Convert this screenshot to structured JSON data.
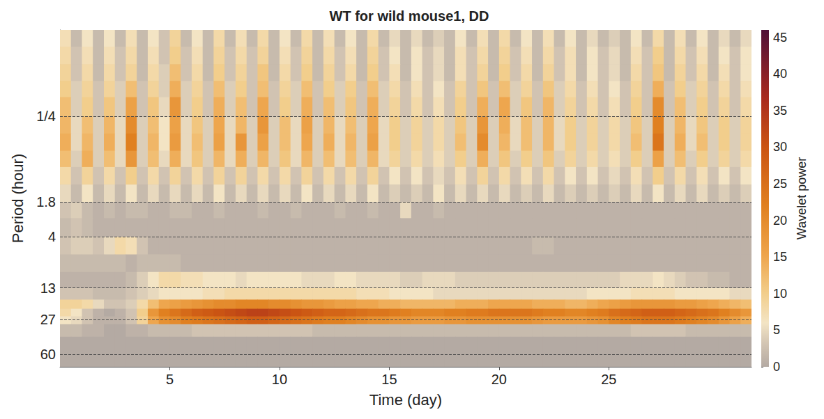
{
  "chart_data": {
    "type": "heatmap",
    "title": "WT for wild mouse1, DD",
    "x_label": "Time (day)",
    "y_label": "Period (hour)",
    "log": "y",
    "grid": true,
    "xlim": [
      0,
      31.5
    ],
    "xticks": [
      5,
      10,
      15,
      20,
      25
    ],
    "ylim": [
      0.034,
      80
    ],
    "yticks": [
      {
        "value": 0.25,
        "label": "1/4"
      },
      1.8,
      4,
      13,
      27,
      60
    ],
    "x_edges": [
      0,
      0.5,
      1,
      1.5,
      2,
      2.5,
      3,
      3.5,
      4,
      4.5,
      5,
      5.5,
      6,
      6.5,
      7,
      7.5,
      8,
      8.5,
      9,
      9.5,
      10,
      10.5,
      11,
      11.5,
      12,
      12.5,
      13,
      13.5,
      14,
      14.5,
      15,
      15.5,
      16,
      16.5,
      17,
      17.5,
      18,
      18.5,
      19,
      19.5,
      20,
      20.5,
      21,
      21.5,
      22,
      22.5,
      23,
      23.5,
      24,
      24.5,
      25,
      25.5,
      26,
      26.5,
      27,
      27.5,
      28,
      28.5,
      29,
      29.5,
      30,
      30.5,
      31,
      31.5
    ],
    "y_edges": [
      0.034,
      0.05,
      0.075,
      0.11,
      0.16,
      0.25,
      0.37,
      0.55,
      0.8,
      1.2,
      1.8,
      2.6,
      4,
      6,
      9,
      13,
      17,
      21,
      25,
      30,
      40,
      55,
      80
    ],
    "power": [
      [
        7,
        2,
        6,
        2,
        6,
        2,
        7,
        2,
        6,
        3,
        9,
        2,
        6,
        2,
        8,
        2,
        7,
        2,
        8,
        2,
        6,
        2,
        8,
        2,
        7,
        2,
        6,
        2,
        8,
        2,
        5,
        2,
        5,
        2,
        4,
        2,
        6,
        2,
        7,
        2,
        8,
        2,
        6,
        2,
        7,
        2,
        6,
        2,
        5,
        2,
        4,
        2,
        6,
        2,
        8,
        2,
        7,
        2,
        6,
        2,
        5,
        2,
        5
      ],
      [
        8,
        3,
        7,
        2,
        7,
        3,
        8,
        2,
        7,
        3,
        10,
        3,
        7,
        2,
        9,
        3,
        8,
        3,
        9,
        2,
        7,
        3,
        9,
        2,
        8,
        3,
        7,
        2,
        9,
        3,
        6,
        2,
        6,
        3,
        5,
        2,
        7,
        3,
        8,
        2,
        9,
        3,
        7,
        2,
        8,
        3,
        7,
        2,
        6,
        3,
        5,
        2,
        7,
        3,
        10,
        2,
        8,
        3,
        7,
        2,
        6,
        3,
        6
      ],
      [
        9,
        3,
        8,
        2,
        8,
        3,
        9,
        2,
        8,
        4,
        12,
        3,
        8,
        2,
        10,
        3,
        9,
        3,
        11,
        2,
        8,
        3,
        10,
        2,
        9,
        3,
        8,
        2,
        10,
        3,
        7,
        2,
        6,
        3,
        5,
        2,
        7,
        3,
        9,
        2,
        10,
        3,
        8,
        2,
        9,
        3,
        7,
        2,
        6,
        3,
        5,
        2,
        8,
        3,
        11,
        2,
        9,
        3,
        8,
        2,
        7,
        3,
        6
      ],
      [
        10,
        4,
        9,
        3,
        9,
        4,
        12,
        3,
        9,
        4,
        14,
        4,
        9,
        3,
        12,
        4,
        10,
        3,
        12,
        3,
        9,
        4,
        12,
        3,
        10,
        4,
        10,
        3,
        12,
        4,
        8,
        3,
        7,
        3,
        6,
        3,
        9,
        3,
        11,
        3,
        12,
        4,
        9,
        3,
        11,
        4,
        8,
        3,
        7,
        3,
        6,
        3,
        9,
        3,
        14,
        3,
        10,
        4,
        9,
        3,
        8,
        3,
        7
      ],
      [
        12,
        4,
        10,
        3,
        11,
        4,
        16,
        3,
        11,
        5,
        18,
        4,
        10,
        3,
        14,
        4,
        12,
        3,
        15,
        3,
        10,
        4,
        14,
        3,
        12,
        4,
        11,
        3,
        14,
        4,
        9,
        3,
        8,
        3,
        7,
        3,
        10,
        3,
        14,
        3,
        15,
        4,
        11,
        3,
        13,
        4,
        9,
        3,
        8,
        3,
        7,
        3,
        10,
        3,
        20,
        3,
        12,
        4,
        10,
        3,
        9,
        3,
        8
      ],
      [
        13,
        5,
        12,
        4,
        13,
        5,
        20,
        4,
        12,
        6,
        16,
        5,
        11,
        4,
        15,
        5,
        13,
        4,
        18,
        4,
        12,
        5,
        16,
        4,
        13,
        5,
        12,
        4,
        15,
        5,
        10,
        4,
        9,
        4,
        8,
        4,
        11,
        4,
        18,
        4,
        14,
        5,
        12,
        4,
        13,
        5,
        10,
        4,
        9,
        4,
        8,
        4,
        11,
        4,
        22,
        4,
        13,
        5,
        11,
        4,
        10,
        4,
        9
      ],
      [
        14,
        5,
        13,
        4,
        14,
        5,
        22,
        4,
        13,
        6,
        17,
        5,
        12,
        4,
        16,
        5,
        18,
        4,
        16,
        4,
        12,
        5,
        15,
        4,
        14,
        5,
        13,
        4,
        16,
        5,
        10,
        4,
        9,
        4,
        8,
        4,
        12,
        4,
        20,
        4,
        13,
        5,
        12,
        4,
        13,
        5,
        10,
        4,
        9,
        4,
        8,
        4,
        12,
        4,
        24,
        4,
        14,
        5,
        12,
        4,
        10,
        4,
        9
      ],
      [
        12,
        4,
        14,
        4,
        12,
        5,
        18,
        4,
        12,
        5,
        14,
        5,
        11,
        4,
        13,
        5,
        14,
        4,
        13,
        4,
        11,
        5,
        13,
        4,
        12,
        5,
        12,
        4,
        13,
        5,
        9,
        4,
        8,
        4,
        7,
        4,
        10,
        4,
        14,
        4,
        11,
        4,
        10,
        4,
        11,
        4,
        9,
        4,
        8,
        4,
        7,
        4,
        10,
        4,
        16,
        4,
        12,
        4,
        10,
        4,
        9,
        4,
        8
      ],
      [
        8,
        3,
        9,
        3,
        8,
        3,
        10,
        3,
        8,
        3,
        9,
        3,
        8,
        3,
        9,
        3,
        9,
        3,
        8,
        3,
        8,
        3,
        9,
        3,
        8,
        3,
        8,
        3,
        9,
        3,
        6,
        3,
        6,
        3,
        5,
        3,
        7,
        3,
        9,
        3,
        8,
        3,
        7,
        3,
        8,
        3,
        6,
        3,
        6,
        3,
        5,
        3,
        7,
        3,
        10,
        3,
        8,
        3,
        7,
        3,
        6,
        3,
        6
      ],
      [
        5,
        2,
        6,
        2,
        5,
        2,
        6,
        2,
        5,
        2,
        5,
        2,
        5,
        2,
        6,
        2,
        5,
        2,
        5,
        2,
        5,
        2,
        6,
        2,
        5,
        2,
        5,
        2,
        6,
        2,
        4,
        2,
        4,
        2,
        6,
        2,
        5,
        2,
        5,
        2,
        5,
        2,
        4,
        2,
        5,
        2,
        4,
        2,
        4,
        2,
        4,
        2,
        5,
        2,
        6,
        2,
        5,
        2,
        5,
        2,
        4,
        2,
        4
      ],
      [
        3,
        4,
        2,
        1,
        2,
        1,
        2,
        2,
        1,
        1,
        2,
        2,
        1,
        1,
        2,
        1,
        1,
        1,
        2,
        1,
        1,
        2,
        1,
        1,
        1,
        2,
        1,
        1,
        2,
        1,
        1,
        5,
        1,
        1,
        2,
        1,
        1,
        1,
        1,
        1,
        1,
        1,
        1,
        1,
        1,
        1,
        1,
        1,
        1,
        1,
        1,
        1,
        1,
        1,
        1,
        1,
        1,
        1,
        1,
        1,
        1,
        1,
        1
      ],
      [
        2,
        3,
        2,
        1,
        1,
        1,
        1,
        1,
        1,
        1,
        1,
        1,
        1,
        1,
        1,
        1,
        1,
        1,
        1,
        1,
        1,
        1,
        1,
        1,
        1,
        1,
        1,
        1,
        1,
        1,
        1,
        1,
        1,
        1,
        1,
        1,
        1,
        1,
        1,
        1,
        1,
        1,
        1,
        1,
        1,
        1,
        1,
        1,
        1,
        1,
        1,
        1,
        1,
        1,
        1,
        1,
        1,
        1,
        1,
        1,
        1,
        1,
        1
      ],
      [
        3,
        4,
        4,
        3,
        5,
        8,
        7,
        3,
        1,
        1,
        1,
        1,
        1,
        1,
        1,
        1,
        1,
        1,
        1,
        1,
        1,
        1,
        1,
        1,
        1,
        1,
        1,
        1,
        1,
        1,
        1,
        1,
        1,
        1,
        1,
        1,
        1,
        1,
        1,
        1,
        1,
        1,
        1,
        2,
        2,
        1,
        1,
        1,
        1,
        1,
        1,
        1,
        1,
        1,
        1,
        1,
        1,
        1,
        1,
        1,
        1,
        1,
        1
      ],
      [
        2,
        2,
        2,
        2,
        2,
        2,
        1,
        2,
        2,
        2,
        2,
        1,
        1,
        1,
        1,
        1,
        1,
        1,
        1,
        1,
        1,
        1,
        1,
        1,
        1,
        1,
        1,
        1,
        1,
        1,
        1,
        1,
        1,
        1,
        1,
        1,
        1,
        1,
        1,
        1,
        1,
        1,
        1,
        1,
        1,
        1,
        1,
        1,
        1,
        1,
        1,
        1,
        1,
        1,
        1,
        1,
        1,
        1,
        1,
        1,
        1,
        1,
        1
      ],
      [
        1,
        1,
        1,
        1,
        1,
        1,
        2,
        4,
        6,
        8,
        8,
        7,
        7,
        6,
        6,
        6,
        5,
        6,
        6,
        6,
        6,
        6,
        5,
        5,
        5,
        6,
        6,
        5,
        5,
        5,
        5,
        4,
        4,
        5,
        5,
        5,
        4,
        4,
        4,
        4,
        4,
        4,
        4,
        4,
        4,
        4,
        4,
        4,
        4,
        4,
        4,
        5,
        5,
        5,
        6,
        5,
        4,
        3,
        3,
        2,
        2,
        1,
        1
      ],
      [
        3,
        3,
        3,
        2,
        2,
        2,
        3,
        4,
        5,
        6,
        6,
        6,
        6,
        7,
        7,
        8,
        8,
        8,
        8,
        8,
        8,
        8,
        8,
        8,
        8,
        8,
        8,
        7,
        7,
        7,
        6,
        6,
        6,
        6,
        5,
        5,
        5,
        5,
        5,
        5,
        5,
        5,
        5,
        5,
        5,
        5,
        5,
        5,
        6,
        6,
        6,
        6,
        7,
        7,
        7,
        7,
        6,
        6,
        6,
        6,
        6,
        5,
        5
      ],
      [
        9,
        9,
        8,
        5,
        3,
        3,
        4,
        8,
        12,
        15,
        16,
        17,
        18,
        19,
        20,
        20,
        21,
        21,
        21,
        20,
        20,
        19,
        18,
        18,
        17,
        16,
        16,
        15,
        15,
        14,
        14,
        13,
        13,
        13,
        13,
        13,
        14,
        14,
        14,
        15,
        15,
        15,
        15,
        14,
        14,
        14,
        13,
        13,
        14,
        15,
        16,
        17,
        18,
        18,
        18,
        18,
        17,
        17,
        16,
        15,
        14,
        13,
        12
      ],
      [
        8,
        6,
        3,
        1,
        0,
        1,
        3,
        10,
        18,
        22,
        24,
        26,
        28,
        29,
        30,
        31,
        32,
        33,
        33,
        32,
        31,
        30,
        29,
        28,
        27,
        27,
        26,
        25,
        24,
        24,
        23,
        22,
        21,
        21,
        21,
        22,
        22,
        23,
        23,
        24,
        24,
        24,
        24,
        23,
        22,
        22,
        21,
        21,
        22,
        23,
        25,
        26,
        27,
        28,
        28,
        28,
        27,
        26,
        25,
        24,
        22,
        20,
        18
      ],
      [
        6,
        5,
        3,
        1,
        1,
        1,
        3,
        9,
        15,
        19,
        20,
        22,
        23,
        24,
        25,
        26,
        27,
        28,
        28,
        27,
        26,
        25,
        24,
        23,
        22,
        22,
        21,
        20,
        19,
        19,
        18,
        18,
        17,
        17,
        17,
        18,
        18,
        19,
        19,
        19,
        19,
        19,
        19,
        18,
        17,
        17,
        17,
        17,
        18,
        19,
        21,
        22,
        23,
        24,
        24,
        24,
        23,
        22,
        21,
        20,
        18,
        16,
        14
      ],
      [
        2,
        2,
        1,
        1,
        0,
        0,
        1,
        1,
        2,
        2,
        2,
        2,
        3,
        3,
        3,
        3,
        3,
        3,
        3,
        3,
        3,
        3,
        3,
        2,
        2,
        2,
        2,
        2,
        2,
        2,
        2,
        2,
        2,
        2,
        2,
        2,
        2,
        2,
        2,
        2,
        2,
        2,
        2,
        2,
        2,
        2,
        2,
        2,
        2,
        2,
        2,
        2,
        3,
        3,
        3,
        3,
        3,
        2,
        2,
        2,
        2,
        2,
        2
      ],
      [
        0,
        0,
        0,
        0,
        0,
        0,
        0,
        0,
        0,
        0,
        0,
        0,
        0,
        0,
        0,
        0,
        0,
        0,
        0,
        0,
        0,
        0,
        0,
        0,
        0,
        0,
        0,
        0,
        0,
        0,
        0,
        0,
        0,
        0,
        0,
        0,
        0,
        0,
        0,
        0,
        0,
        0,
        0,
        0,
        0,
        0,
        0,
        0,
        0,
        0,
        0,
        0,
        0,
        0,
        0,
        0,
        0,
        0,
        0,
        0,
        0,
        0,
        0
      ],
      [
        0,
        0,
        0,
        0,
        0,
        0,
        0,
        0,
        0,
        0,
        0,
        0,
        0,
        0,
        0,
        0,
        0,
        0,
        0,
        0,
        0,
        0,
        0,
        0,
        0,
        0,
        0,
        0,
        0,
        0,
        0,
        0,
        0,
        0,
        0,
        0,
        0,
        0,
        0,
        0,
        0,
        0,
        0,
        0,
        0,
        0,
        0,
        0,
        0,
        0,
        0,
        0,
        0,
        0,
        0,
        0,
        0,
        0,
        0,
        0,
        0,
        0,
        0
      ]
    ],
    "colorbar": {
      "label": "Wavelet power",
      "lim": [
        0,
        46
      ],
      "ticks": [
        0,
        5,
        10,
        15,
        20,
        25,
        30,
        35,
        40,
        45
      ]
    }
  }
}
